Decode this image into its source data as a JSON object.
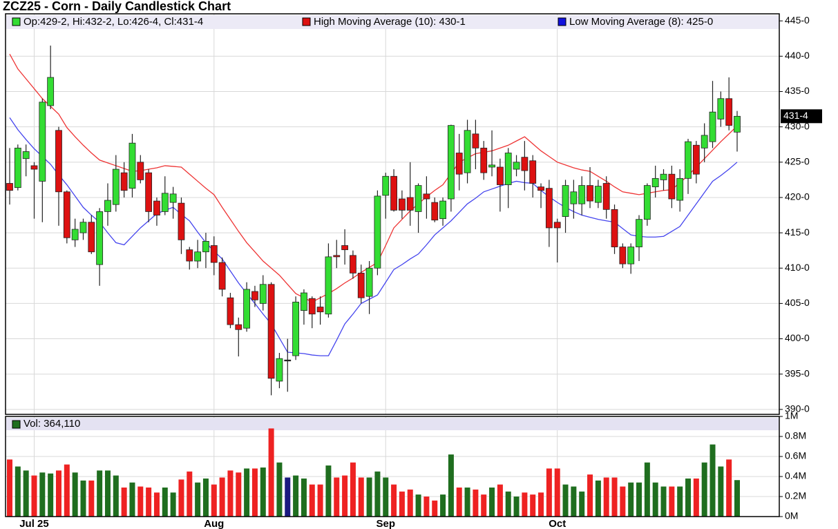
{
  "chart_data": {
    "type": "candlestick",
    "title": "ZCZ25 - Corn - Daily Candlestick Chart",
    "ohlc_legend": "Op:429-2, Hi:432-2, Lo:426-4, Cl:431-4",
    "last_price_label": "431-4",
    "up_color": "#33dd33",
    "down_color": "#dd1111",
    "categories": [
      null,
      null,
      null,
      "Jul 25",
      null,
      null,
      null,
      null,
      null,
      null,
      null,
      null,
      null,
      null,
      null,
      null,
      null,
      null,
      null,
      null,
      null,
      null,
      null,
      null,
      null,
      "Aug",
      null,
      null,
      null,
      null,
      null,
      null,
      null,
      null,
      null,
      null,
      null,
      null,
      null,
      null,
      null,
      null,
      null,
      null,
      null,
      null,
      "Sep",
      null,
      null,
      null,
      null,
      null,
      null,
      null,
      null,
      null,
      null,
      null,
      null,
      null,
      null,
      null,
      null,
      null,
      null,
      null,
      null,
      "Oct",
      null,
      null,
      null,
      null,
      null,
      null,
      null,
      null,
      null,
      null,
      null,
      null,
      null,
      null,
      null,
      null,
      null,
      null,
      null,
      null,
      null,
      null
    ],
    "open": [
      422,
      421.4,
      425.5,
      424.5,
      422.3,
      433,
      429.5,
      420.8,
      414,
      415,
      416.5,
      410.5,
      418,
      419,
      423.5,
      421.3,
      425,
      423.5,
      419.5,
      418,
      419.3,
      419.2,
      412.6,
      411,
      412.3,
      413.2,
      410.8,
      405.8,
      402,
      401.5,
      406.7,
      405,
      407.7,
      394,
      397,
      397.6,
      404,
      405.7,
      404.5,
      403.5,
      411.8,
      413.2,
      411.8,
      409.3,
      406,
      410,
      420.3,
      423,
      419.8,
      420,
      418,
      420.5,
      419.3,
      417,
      419.8,
      426.3,
      423.5,
      429,
      427,
      424.3,
      424.3,
      421.8,
      424,
      425.7,
      425.2,
      421.5,
      421.3,
      416.5,
      417.3,
      419.1,
      419.1,
      421.7,
      419.3,
      422,
      418.3,
      413,
      410.6,
      413,
      416.9,
      421.5,
      422.5,
      423.3,
      419.6,
      422.7,
      427.4,
      427,
      427.9,
      431.1,
      434,
      429.25
    ],
    "high": [
      427,
      427.5,
      427.5,
      425,
      434,
      441.5,
      430,
      421,
      417,
      417,
      417.5,
      418.5,
      422,
      426,
      425,
      429,
      426,
      424,
      420,
      423,
      421.5,
      420,
      413,
      414,
      415,
      414.5,
      411.5,
      406.5,
      403,
      408,
      407.5,
      409,
      408,
      398,
      400,
      406,
      407,
      406,
      406,
      413.5,
      414,
      415.5,
      412.5,
      410.5,
      411,
      421,
      423.5,
      424,
      421,
      425,
      422,
      423,
      420,
      420,
      430.3,
      429,
      431,
      431,
      428,
      429.5,
      425.5,
      427,
      426,
      428,
      426,
      422,
      422.5,
      417,
      422.5,
      422.5,
      423,
      424.3,
      422.5,
      423,
      419,
      413.5,
      413.5,
      417.5,
      422,
      424.5,
      424,
      424.5,
      424,
      428.3,
      428,
      430.5,
      436.5,
      435,
      437,
      432.25
    ],
    "low": [
      419,
      421,
      423,
      417,
      416.5,
      432.5,
      416,
      413.5,
      413,
      414,
      412,
      407.5,
      416,
      418,
      420,
      420,
      422,
      416.5,
      416,
      417.5,
      417,
      412,
      409.8,
      410,
      410,
      409,
      406,
      401.5,
      397.5,
      401,
      404.5,
      404,
      392,
      393,
      392.5,
      397,
      402,
      401.5,
      402,
      403,
      410,
      410.5,
      408.5,
      405,
      403.5,
      409,
      417,
      418,
      417,
      416,
      415,
      417,
      416.5,
      416,
      418,
      421,
      422,
      424,
      422.5,
      423,
      418,
      418.5,
      423,
      421,
      420,
      418.5,
      413,
      410.8,
      415,
      417,
      417.5,
      418.5,
      418.5,
      417,
      412,
      410,
      409.2,
      411,
      416,
      420,
      421,
      418.5,
      418,
      420.5,
      422,
      425,
      427,
      430,
      429.5,
      426.5
    ],
    "close": [
      421,
      427,
      426.5,
      424,
      433.5,
      437,
      420.8,
      414.3,
      415.5,
      416.5,
      412.3,
      418,
      419.6,
      424,
      421,
      427.7,
      422.5,
      418,
      417.5,
      420.6,
      420.5,
      414,
      411,
      412.3,
      413.8,
      410.8,
      407,
      402,
      401.3,
      407,
      405.5,
      407.7,
      394.4,
      397.2,
      397,
      405.2,
      406.5,
      403.5,
      403.8,
      411.6,
      411.6,
      412.6,
      409.3,
      405.8,
      410,
      420.2,
      423,
      418.2,
      418.2,
      418.2,
      421.7,
      419.8,
      416.8,
      419.5,
      430.2,
      423.3,
      429.5,
      427,
      423.5,
      424.6,
      421.8,
      426.3,
      425,
      423.8,
      422,
      421,
      415.7,
      415.7,
      421.7,
      420.8,
      421.7,
      419.5,
      421.6,
      418.3,
      413,
      410.6,
      413,
      416.9,
      421.7,
      422.7,
      423.3,
      419.8,
      422.7,
      427.9,
      423.3,
      428.8,
      432.1,
      434,
      430.2,
      431.5
    ],
    "series": [
      {
        "name": "High Moving Average (10): 430-1",
        "color": "#ee3333",
        "values": [
          440.3,
          438.2,
          436.8,
          435.4,
          434,
          432.9,
          431.8,
          429.9,
          428.6,
          427.4,
          426.3,
          425.3,
          424.9,
          424.5,
          424.1,
          423.7,
          423.8,
          424,
          424.2,
          424.5,
          424.4,
          424.3,
          423.3,
          422.3,
          421.3,
          420.4,
          418.6,
          416.9,
          415.2,
          413.6,
          412.3,
          411,
          410,
          409,
          407.7,
          406.4,
          405.8,
          405.2,
          405.8,
          406.4,
          407.1,
          407.9,
          408.6,
          409.4,
          410.1,
          410.8,
          413.2,
          415.7,
          416.9,
          418.1,
          419.1,
          420.1,
          421,
          421.8,
          423.4,
          425,
          425.6,
          426.2,
          426.4,
          426.6,
          427,
          427.4,
          428,
          428.6,
          427.6,
          426.6,
          425.8,
          425,
          424.6,
          424.2,
          423.9,
          423.7,
          423,
          422.3,
          421.5,
          420.8,
          420.6,
          420.4,
          420.6,
          420.8,
          421,
          421.1,
          422.1,
          423.1,
          424.3,
          425.5,
          426.7,
          427.9,
          429,
          430.125
        ]
      },
      {
        "name": "Low Moving Average (8): 425-0",
        "color": "#4444ee",
        "values": [
          431.3,
          429.6,
          428.2,
          426.9,
          425.8,
          424.7,
          423.2,
          421.8,
          420.2,
          418.6,
          417.5,
          416.5,
          415,
          413.6,
          413.3,
          414.5,
          415.7,
          416.7,
          417.7,
          418.2,
          418.6,
          417.6,
          416.7,
          415.1,
          413.6,
          412.4,
          411.3,
          409.6,
          407.9,
          406.4,
          405,
          403.5,
          402.1,
          400.1,
          398.1,
          398,
          397.9,
          397.7,
          397.6,
          397.6,
          399.8,
          402.1,
          403.5,
          405,
          405.6,
          406.2,
          408,
          409.8,
          410.5,
          411.3,
          412,
          413.3,
          414.7,
          415.7,
          416.7,
          417.9,
          419.1,
          419.9,
          420.8,
          421.2,
          421.6,
          422,
          422.3,
          422.1,
          422,
          421,
          420.1,
          419.3,
          418.6,
          418,
          417.5,
          417.2,
          416.9,
          416.7,
          416.5,
          415.6,
          414.7,
          414.5,
          414.4,
          414.4,
          414.5,
          415.2,
          415.9,
          417.5,
          419.1,
          420.7,
          422.3,
          423.1,
          424,
          425
        ]
      }
    ],
    "ylim": [
      389.3,
      446
    ],
    "yticks": [
      {
        "value": 390,
        "label": "390-0"
      },
      {
        "value": 395,
        "label": "395-0"
      },
      {
        "value": 400,
        "label": "400-0"
      },
      {
        "value": 405,
        "label": "405-0"
      },
      {
        "value": 410,
        "label": "410-0"
      },
      {
        "value": 415,
        "label": "415-0"
      },
      {
        "value": 420,
        "label": "420-0"
      },
      {
        "value": 425,
        "label": "425-0"
      },
      {
        "value": 430,
        "label": "430-0"
      },
      {
        "value": 435,
        "label": "435-0"
      },
      {
        "value": 440,
        "label": "440-0"
      },
      {
        "value": 445,
        "label": "445-0"
      }
    ],
    "grid": true,
    "volume": {
      "legend": "Vol: 364,110",
      "color": "#1f6e1f",
      "up_color": "#1f6e1f",
      "down_color": "#ee2222",
      "unchanged_color": "#1a1a80",
      "values": [
        570000,
        500000,
        460000,
        410000,
        440000,
        430000,
        460000,
        520000,
        440000,
        360000,
        360000,
        460000,
        460000,
        410000,
        290000,
        340000,
        300000,
        290000,
        240000,
        290000,
        240000,
        370000,
        450000,
        340000,
        380000,
        320000,
        390000,
        460000,
        440000,
        480000,
        480000,
        490000,
        880000,
        540000,
        390000,
        410000,
        380000,
        320000,
        320000,
        510000,
        390000,
        410000,
        540000,
        390000,
        390000,
        450000,
        390000,
        320000,
        250000,
        270000,
        220000,
        200000,
        160000,
        220000,
        620000,
        290000,
        290000,
        270000,
        220000,
        290000,
        320000,
        250000,
        200000,
        240000,
        220000,
        240000,
        480000,
        480000,
        320000,
        300000,
        250000,
        420000,
        360000,
        390000,
        390000,
        300000,
        340000,
        340000,
        540000,
        340000,
        300000,
        300000,
        300000,
        380000,
        380000,
        540000,
        720000,
        500000,
        570000,
        364110
      ],
      "ylim": [
        0,
        1000000
      ],
      "yticks": [
        {
          "value": 0,
          "label": "0M"
        },
        {
          "value": 200000,
          "label": "0.2M"
        },
        {
          "value": 400000,
          "label": "0.4M"
        },
        {
          "value": 600000,
          "label": "0.6M"
        },
        {
          "value": 800000,
          "label": "0.8M"
        },
        {
          "value": 1000000,
          "label": "1M"
        }
      ]
    }
  }
}
